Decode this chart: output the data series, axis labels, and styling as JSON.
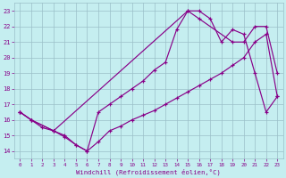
{
  "bg_color": "#c5eef0",
  "grid_color": "#9abfc8",
  "line_color": "#880088",
  "xlabel": "Windchill (Refroidissement éolien,°C)",
  "xlim": [
    -0.5,
    23.5
  ],
  "ylim": [
    13.5,
    23.5
  ],
  "xticks": [
    0,
    1,
    2,
    3,
    4,
    5,
    6,
    7,
    8,
    9,
    10,
    11,
    12,
    13,
    14,
    15,
    16,
    17,
    18,
    19,
    20,
    21,
    22,
    23
  ],
  "yticks": [
    14,
    15,
    16,
    17,
    18,
    19,
    20,
    21,
    22,
    23
  ],
  "line1_x": [
    0,
    1,
    2,
    3,
    4,
    5,
    6,
    7,
    8,
    9,
    10,
    11,
    12,
    13,
    14,
    15,
    16,
    17,
    18,
    19,
    20,
    21,
    22,
    23
  ],
  "line1_y": [
    16.5,
    16.0,
    15.5,
    15.3,
    15.0,
    14.4,
    14.0,
    14.6,
    15.3,
    15.6,
    16.0,
    16.3,
    16.6,
    17.0,
    17.4,
    17.8,
    18.2,
    18.6,
    19.0,
    19.5,
    20.0,
    21.0,
    21.5,
    17.5
  ],
  "line2_x": [
    0,
    1,
    3,
    4,
    5,
    6,
    7,
    8,
    9,
    10,
    11,
    12,
    13,
    14,
    15,
    16,
    17,
    18,
    19,
    20,
    21,
    22,
    23
  ],
  "line2_y": [
    16.5,
    16.0,
    15.3,
    14.9,
    14.4,
    14.0,
    16.5,
    17.0,
    17.5,
    18.0,
    18.5,
    19.2,
    19.7,
    21.8,
    23.0,
    23.0,
    22.5,
    21.0,
    21.8,
    21.5,
    19.0,
    16.5,
    17.5
  ],
  "line3_x": [
    0,
    1,
    3,
    15,
    16,
    19,
    20,
    21,
    22,
    23
  ],
  "line3_y": [
    16.5,
    16.0,
    15.3,
    23.0,
    22.5,
    21.0,
    21.0,
    22.0,
    22.0,
    19.0
  ]
}
